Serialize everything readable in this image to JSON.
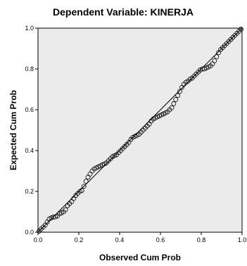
{
  "chart_data": {
    "type": "scatter",
    "title": "Dependent Variable: KINERJA",
    "xlabel": "Observed Cum Prob",
    "ylabel": "Expected Cum Prob",
    "xlim": [
      0,
      1
    ],
    "ylim": [
      0,
      1
    ],
    "x_ticks": [
      "0.0",
      "0.2",
      "0.4",
      "0.6",
      "0.8",
      "1.0"
    ],
    "y_ticks": [
      "0.0",
      "0.2",
      "0.4",
      "0.6",
      "0.8",
      "1.0"
    ],
    "grid": false,
    "legend": "none",
    "reference_line": [
      [
        0,
        0
      ],
      [
        1,
        1
      ]
    ],
    "points": [
      [
        0.005,
        0.005
      ],
      [
        0.015,
        0.015
      ],
      [
        0.025,
        0.025
      ],
      [
        0.035,
        0.035
      ],
      [
        0.045,
        0.05
      ],
      [
        0.055,
        0.065
      ],
      [
        0.065,
        0.07
      ],
      [
        0.075,
        0.075
      ],
      [
        0.085,
        0.075
      ],
      [
        0.095,
        0.08
      ],
      [
        0.105,
        0.09
      ],
      [
        0.115,
        0.095
      ],
      [
        0.125,
        0.1
      ],
      [
        0.135,
        0.11
      ],
      [
        0.145,
        0.13
      ],
      [
        0.155,
        0.14
      ],
      [
        0.165,
        0.15
      ],
      [
        0.175,
        0.165
      ],
      [
        0.185,
        0.18
      ],
      [
        0.195,
        0.19
      ],
      [
        0.205,
        0.2
      ],
      [
        0.215,
        0.205
      ],
      [
        0.225,
        0.225
      ],
      [
        0.235,
        0.25
      ],
      [
        0.245,
        0.27
      ],
      [
        0.255,
        0.285
      ],
      [
        0.265,
        0.3
      ],
      [
        0.275,
        0.31
      ],
      [
        0.285,
        0.315
      ],
      [
        0.295,
        0.32
      ],
      [
        0.305,
        0.325
      ],
      [
        0.315,
        0.33
      ],
      [
        0.325,
        0.335
      ],
      [
        0.335,
        0.34
      ],
      [
        0.345,
        0.35
      ],
      [
        0.355,
        0.36
      ],
      [
        0.365,
        0.37
      ],
      [
        0.375,
        0.375
      ],
      [
        0.385,
        0.38
      ],
      [
        0.395,
        0.39
      ],
      [
        0.405,
        0.4
      ],
      [
        0.415,
        0.41
      ],
      [
        0.425,
        0.42
      ],
      [
        0.435,
        0.43
      ],
      [
        0.445,
        0.44
      ],
      [
        0.455,
        0.455
      ],
      [
        0.465,
        0.465
      ],
      [
        0.475,
        0.47
      ],
      [
        0.485,
        0.475
      ],
      [
        0.495,
        0.48
      ],
      [
        0.505,
        0.49
      ],
      [
        0.515,
        0.5
      ],
      [
        0.525,
        0.51
      ],
      [
        0.535,
        0.52
      ],
      [
        0.545,
        0.53
      ],
      [
        0.555,
        0.545
      ],
      [
        0.565,
        0.555
      ],
      [
        0.575,
        0.56
      ],
      [
        0.585,
        0.565
      ],
      [
        0.595,
        0.57
      ],
      [
        0.605,
        0.575
      ],
      [
        0.615,
        0.58
      ],
      [
        0.625,
        0.585
      ],
      [
        0.635,
        0.59
      ],
      [
        0.645,
        0.6
      ],
      [
        0.655,
        0.61
      ],
      [
        0.665,
        0.63
      ],
      [
        0.675,
        0.65
      ],
      [
        0.685,
        0.67
      ],
      [
        0.695,
        0.69
      ],
      [
        0.705,
        0.71
      ],
      [
        0.715,
        0.725
      ],
      [
        0.725,
        0.735
      ],
      [
        0.735,
        0.74
      ],
      [
        0.745,
        0.75
      ],
      [
        0.755,
        0.755
      ],
      [
        0.765,
        0.765
      ],
      [
        0.775,
        0.775
      ],
      [
        0.785,
        0.785
      ],
      [
        0.795,
        0.795
      ],
      [
        0.805,
        0.8
      ],
      [
        0.815,
        0.8
      ],
      [
        0.825,
        0.805
      ],
      [
        0.835,
        0.81
      ],
      [
        0.845,
        0.815
      ],
      [
        0.855,
        0.825
      ],
      [
        0.865,
        0.84
      ],
      [
        0.875,
        0.86
      ],
      [
        0.885,
        0.88
      ],
      [
        0.895,
        0.895
      ],
      [
        0.905,
        0.905
      ],
      [
        0.915,
        0.915
      ],
      [
        0.925,
        0.925
      ],
      [
        0.935,
        0.935
      ],
      [
        0.945,
        0.945
      ],
      [
        0.955,
        0.955
      ],
      [
        0.965,
        0.965
      ],
      [
        0.975,
        0.975
      ],
      [
        0.985,
        0.985
      ],
      [
        0.995,
        0.995
      ]
    ],
    "colors": {
      "plot_background": "#ebebeb",
      "point_stroke": "#000000",
      "reference_line": "#000000"
    }
  }
}
